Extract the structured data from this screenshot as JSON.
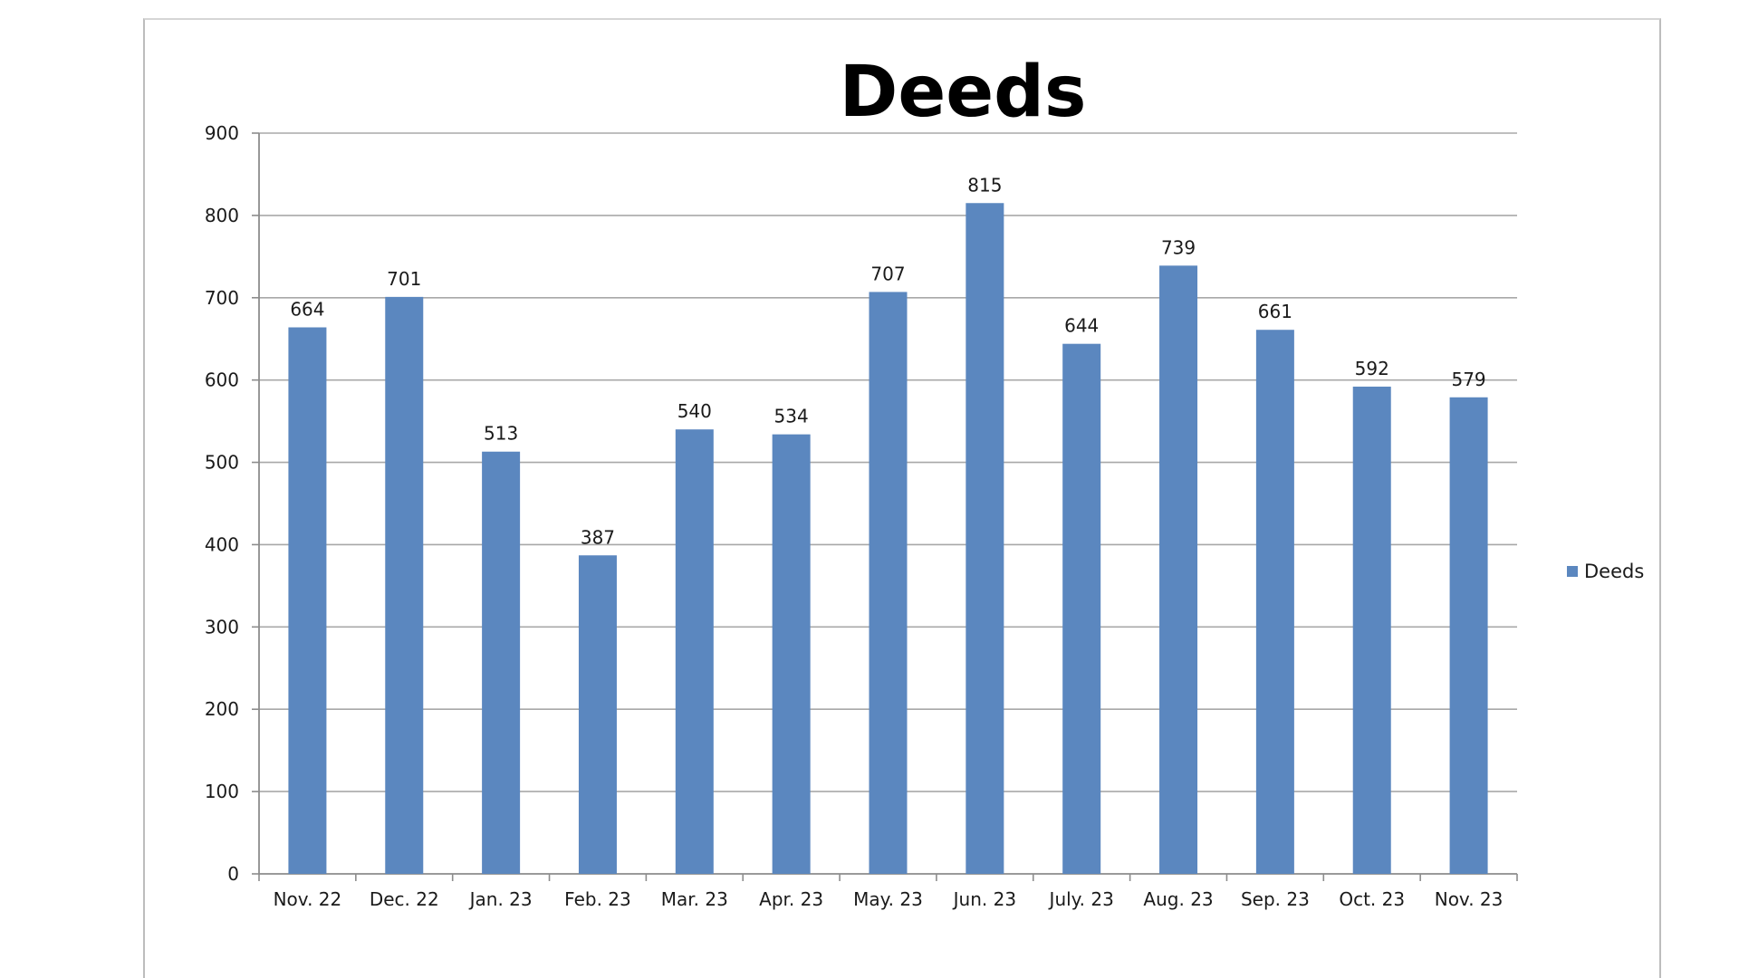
{
  "chart_data": {
    "type": "bar",
    "title": "Deeds",
    "xlabel": "",
    "ylabel": "",
    "categories": [
      "Nov. 22",
      "Dec. 22",
      "Jan. 23",
      "Feb. 23",
      "Mar. 23",
      "Apr. 23",
      "May. 23",
      "Jun. 23",
      "July. 23",
      "Aug. 23",
      "Sep. 23",
      "Oct. 23",
      "Nov. 23"
    ],
    "series": [
      {
        "name": "Deeds",
        "values": [
          664,
          701,
          513,
          387,
          540,
          534,
          707,
          815,
          644,
          739,
          661,
          592,
          579
        ],
        "color": "#5b87bf"
      }
    ],
    "ylim": [
      0,
      900
    ],
    "yticks": [
      "0",
      "100",
      "200",
      "300",
      "400",
      "500",
      "600",
      "700",
      "800",
      "900"
    ],
    "grid": true,
    "legend": "right"
  }
}
